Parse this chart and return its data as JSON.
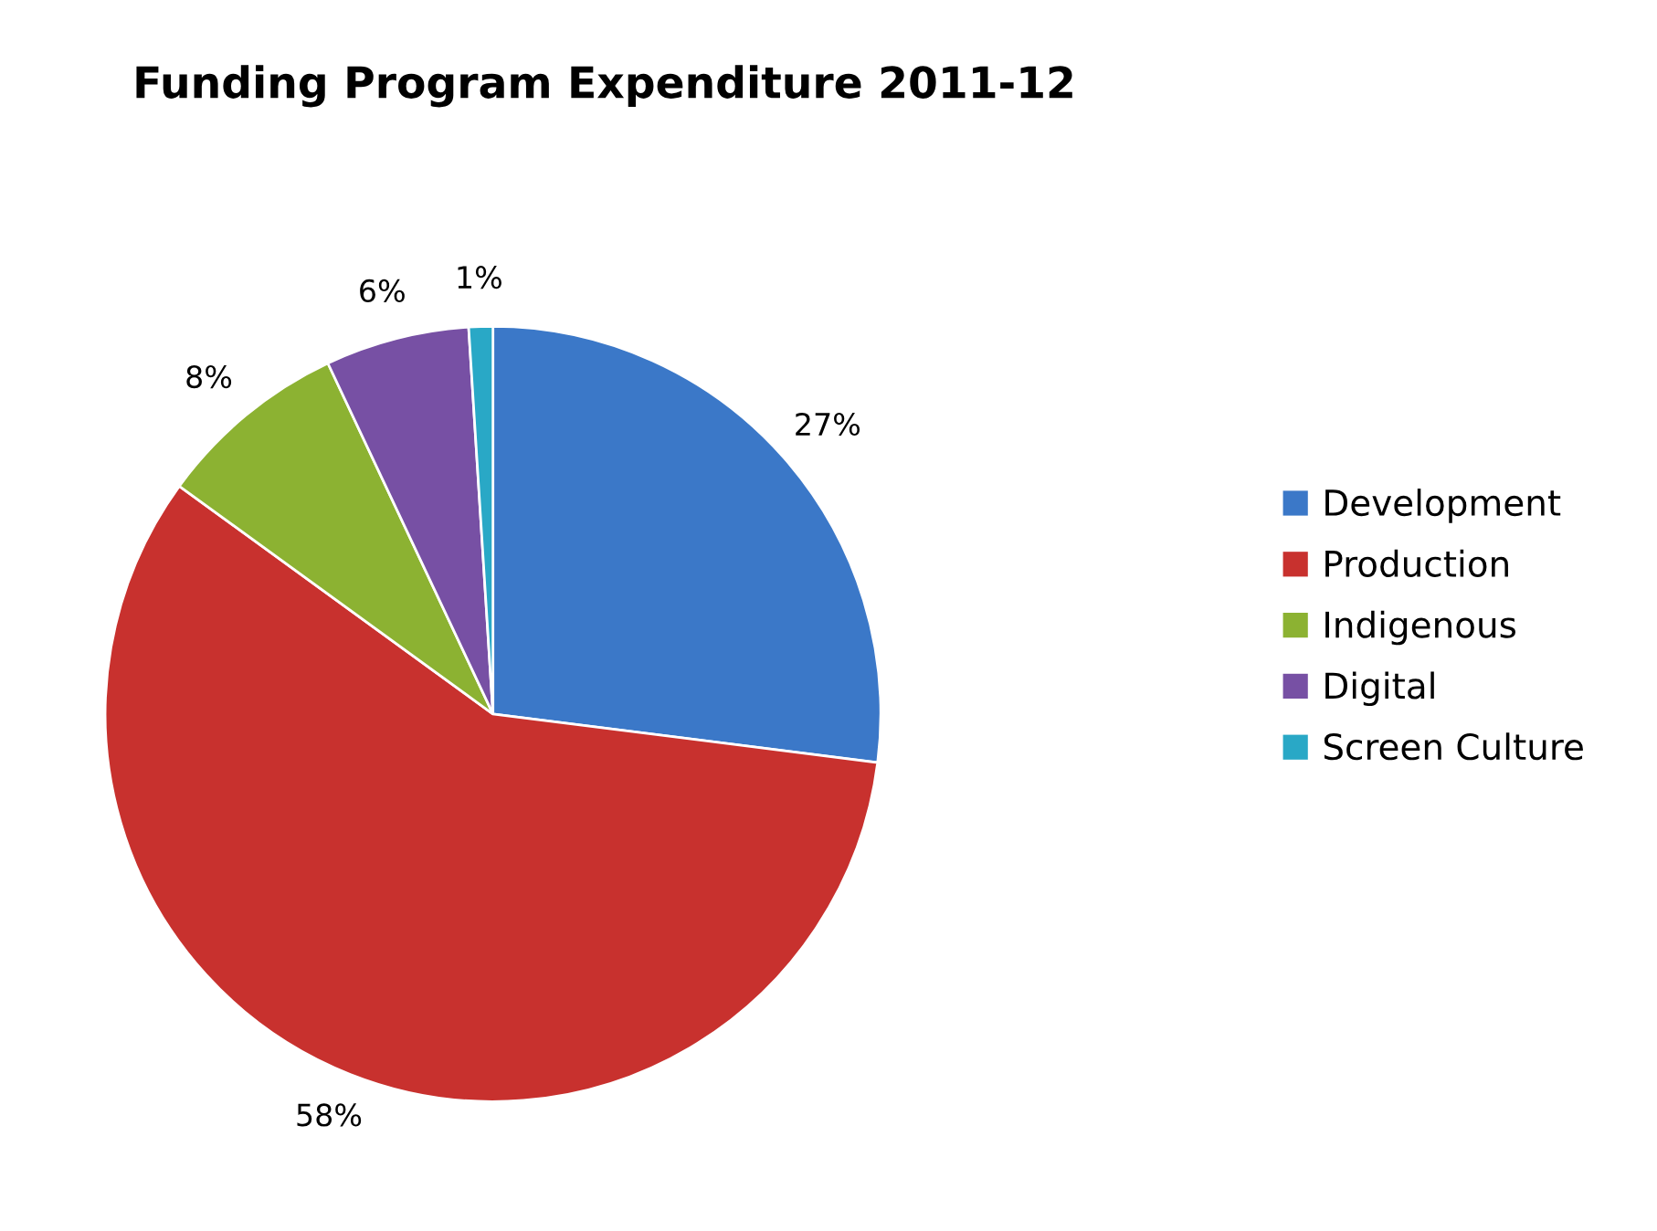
{
  "chart_data": {
    "type": "pie",
    "title": "Funding Program Expenditure 2011-12",
    "categories": [
      "Development",
      "Production",
      "Indigenous",
      "Digital",
      "Screen Culture"
    ],
    "values": [
      27,
      58,
      8,
      6,
      1
    ],
    "colors": [
      "#3b78c8",
      "#c8312e",
      "#8cb232",
      "#7750a4",
      "#29a8c6"
    ],
    "value_labels": [
      "27%",
      "58%",
      "8%",
      "6%",
      "1%"
    ],
    "legend": "right"
  }
}
